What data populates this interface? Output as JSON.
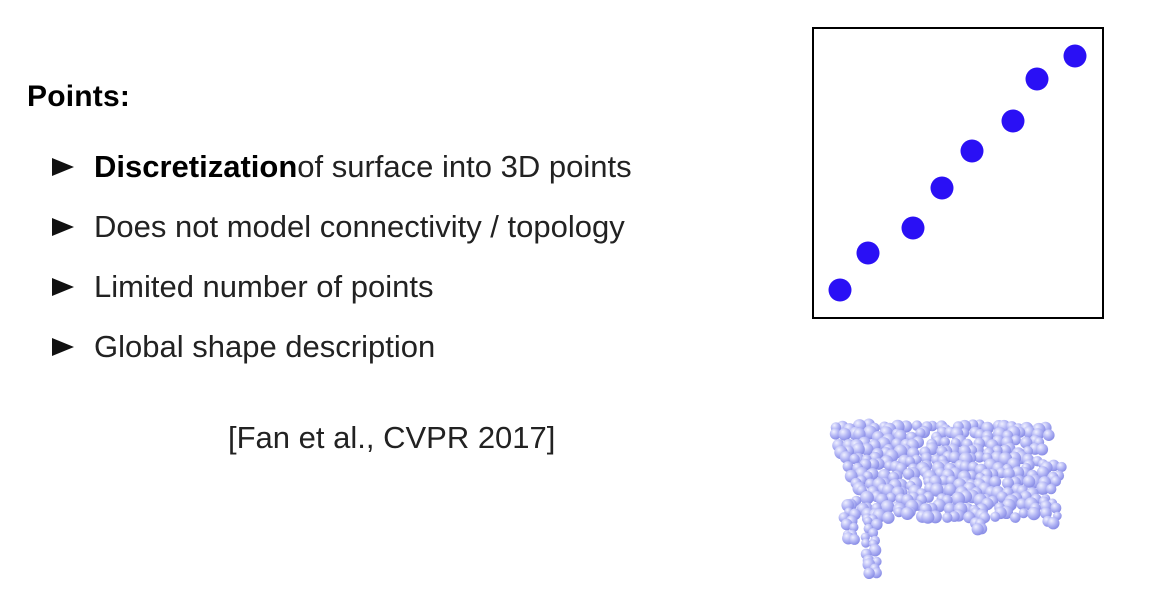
{
  "heading": "Points:",
  "bullets": [
    {
      "bold": "Discretization",
      "text": " of surface into 3D points"
    },
    {
      "bold": "",
      "text": "Does not model connectivity / topology"
    },
    {
      "bold": "",
      "text": "Limited number of points"
    },
    {
      "bold": "",
      "text": "Global shape description"
    }
  ],
  "citation": "[Fan et al., CVPR 2017]",
  "colors": {
    "point": "#2a10f5",
    "bench": "#b3b6f5"
  },
  "icons": {
    "bullet_marker": "right-pointing-triangle"
  }
}
